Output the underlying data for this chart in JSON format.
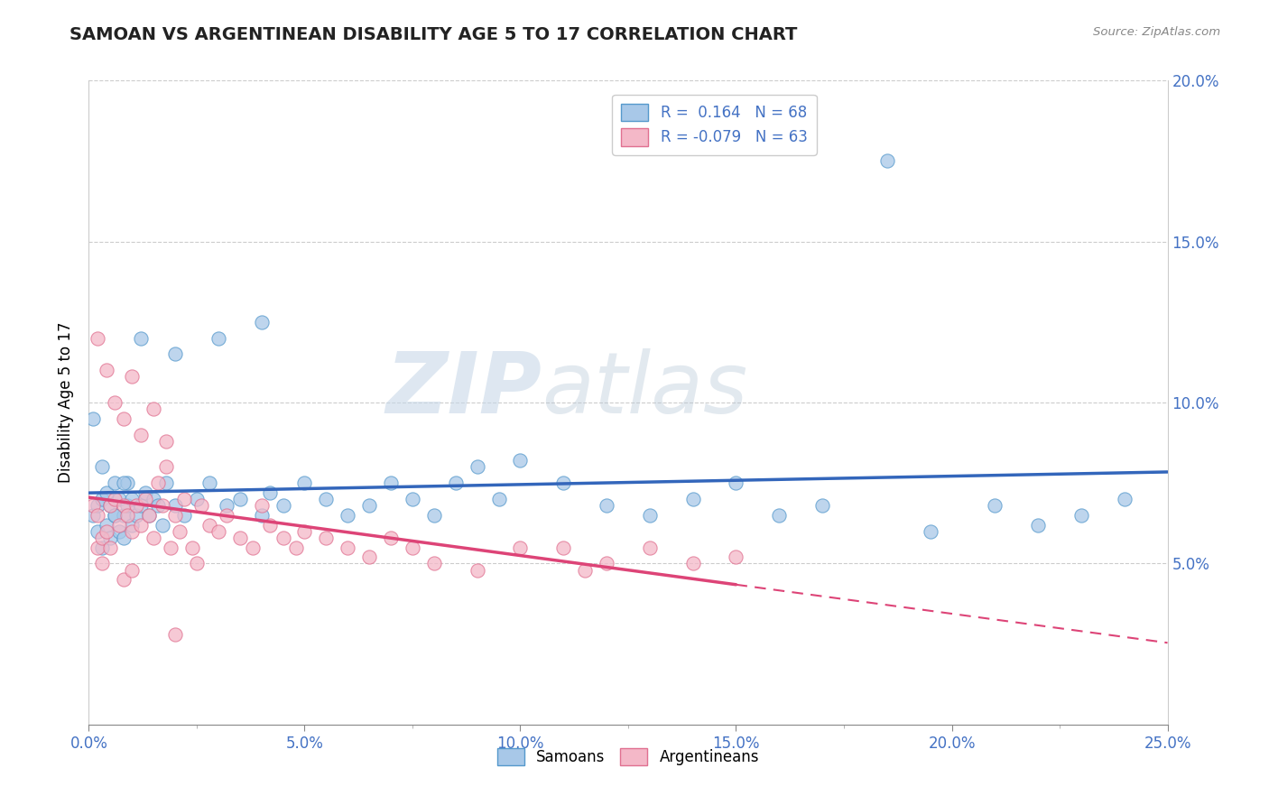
{
  "title": "SAMOAN VS ARGENTINEAN DISABILITY AGE 5 TO 17 CORRELATION CHART",
  "source_text": "Source: ZipAtlas.com",
  "ylabel": "Disability Age 5 to 17",
  "xlim": [
    0.0,
    0.25
  ],
  "ylim": [
    0.0,
    0.2
  ],
  "xticks": [
    0.0,
    0.05,
    0.1,
    0.15,
    0.2,
    0.25
  ],
  "yticks": [
    0.05,
    0.1,
    0.15,
    0.2
  ],
  "xtick_labels": [
    "0.0%",
    "5.0%",
    "10.0%",
    "15.0%",
    "20.0%",
    "25.0%"
  ],
  "ytick_labels": [
    "5.0%",
    "10.0%",
    "15.0%",
    "20.0%"
  ],
  "blue_scatter_color": "#a8c8e8",
  "blue_edge_color": "#5599cc",
  "pink_scatter_color": "#f4b8c8",
  "pink_edge_color": "#e07090",
  "blue_line_color": "#3366bb",
  "pink_line_color": "#dd4477",
  "r_blue": 0.164,
  "n_blue": 68,
  "r_pink": -0.079,
  "n_pink": 63,
  "watermark_zip": "ZIP",
  "watermark_atlas": "atlas",
  "samoans_x": [
    0.001,
    0.002,
    0.002,
    0.003,
    0.003,
    0.004,
    0.004,
    0.005,
    0.005,
    0.006,
    0.006,
    0.007,
    0.007,
    0.008,
    0.008,
    0.009,
    0.009,
    0.01,
    0.01,
    0.011,
    0.012,
    0.013,
    0.014,
    0.015,
    0.016,
    0.017,
    0.018,
    0.02,
    0.022,
    0.025,
    0.028,
    0.032,
    0.035,
    0.04,
    0.042,
    0.045,
    0.05,
    0.055,
    0.06,
    0.065,
    0.07,
    0.075,
    0.08,
    0.085,
    0.09,
    0.095,
    0.1,
    0.11,
    0.12,
    0.13,
    0.14,
    0.15,
    0.16,
    0.17,
    0.185,
    0.195,
    0.21,
    0.22,
    0.23,
    0.24,
    0.001,
    0.003,
    0.006,
    0.008,
    0.012,
    0.02,
    0.03,
    0.04
  ],
  "samoans_y": [
    0.065,
    0.06,
    0.068,
    0.055,
    0.07,
    0.062,
    0.072,
    0.058,
    0.068,
    0.065,
    0.075,
    0.06,
    0.07,
    0.065,
    0.058,
    0.068,
    0.075,
    0.062,
    0.07,
    0.065,
    0.068,
    0.072,
    0.065,
    0.07,
    0.068,
    0.062,
    0.075,
    0.068,
    0.065,
    0.07,
    0.075,
    0.068,
    0.07,
    0.065,
    0.072,
    0.068,
    0.075,
    0.07,
    0.065,
    0.068,
    0.075,
    0.07,
    0.065,
    0.075,
    0.08,
    0.07,
    0.082,
    0.075,
    0.068,
    0.065,
    0.07,
    0.075,
    0.065,
    0.068,
    0.175,
    0.06,
    0.068,
    0.062,
    0.065,
    0.07,
    0.095,
    0.08,
    0.065,
    0.075,
    0.12,
    0.115,
    0.12,
    0.125
  ],
  "argentineans_x": [
    0.001,
    0.002,
    0.002,
    0.003,
    0.003,
    0.004,
    0.005,
    0.005,
    0.006,
    0.007,
    0.008,
    0.008,
    0.009,
    0.01,
    0.01,
    0.011,
    0.012,
    0.013,
    0.014,
    0.015,
    0.016,
    0.017,
    0.018,
    0.019,
    0.02,
    0.021,
    0.022,
    0.024,
    0.026,
    0.028,
    0.03,
    0.032,
    0.035,
    0.038,
    0.04,
    0.042,
    0.045,
    0.048,
    0.05,
    0.055,
    0.06,
    0.065,
    0.07,
    0.075,
    0.08,
    0.09,
    0.1,
    0.11,
    0.12,
    0.13,
    0.14,
    0.15,
    0.002,
    0.004,
    0.006,
    0.008,
    0.01,
    0.012,
    0.015,
    0.018,
    0.02,
    0.025,
    0.115
  ],
  "argentineans_y": [
    0.068,
    0.065,
    0.055,
    0.058,
    0.05,
    0.06,
    0.068,
    0.055,
    0.07,
    0.062,
    0.068,
    0.045,
    0.065,
    0.06,
    0.048,
    0.068,
    0.062,
    0.07,
    0.065,
    0.058,
    0.075,
    0.068,
    0.08,
    0.055,
    0.065,
    0.06,
    0.07,
    0.055,
    0.068,
    0.062,
    0.06,
    0.065,
    0.058,
    0.055,
    0.068,
    0.062,
    0.058,
    0.055,
    0.06,
    0.058,
    0.055,
    0.052,
    0.058,
    0.055,
    0.05,
    0.048,
    0.055,
    0.055,
    0.05,
    0.055,
    0.05,
    0.052,
    0.12,
    0.11,
    0.1,
    0.095,
    0.108,
    0.09,
    0.098,
    0.088,
    0.028,
    0.05,
    0.048
  ]
}
